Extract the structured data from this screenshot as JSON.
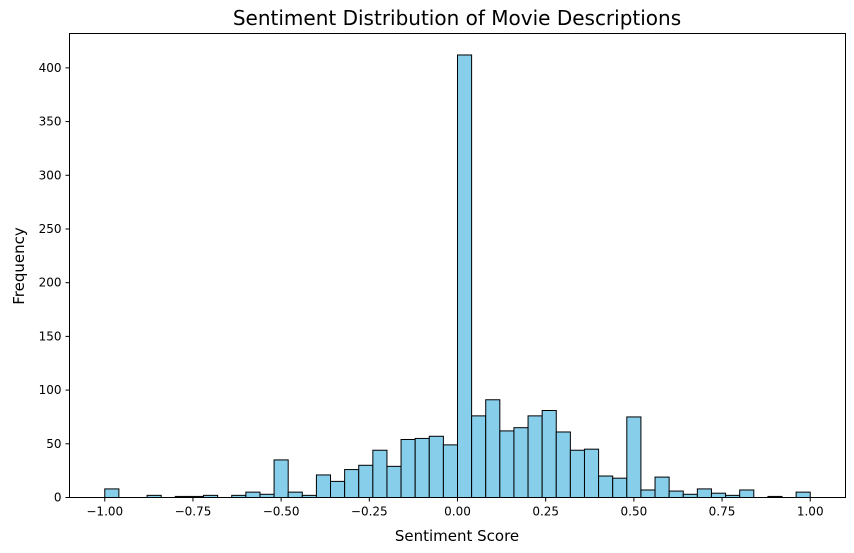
{
  "chart_data": {
    "type": "bar",
    "title": "Sentiment Distribution of Movie Descriptions",
    "xlabel": "Sentiment Score",
    "ylabel": "Frequency",
    "xlim": [
      -1.1,
      1.1
    ],
    "ylim": [
      0,
      432
    ],
    "bin_edges_range": [
      -1.0,
      1.0
    ],
    "bin_count": 50,
    "x_ticks": [
      -1.0,
      -0.75,
      -0.5,
      -0.25,
      0.0,
      0.25,
      0.5,
      0.75,
      1.0
    ],
    "x_tick_labels": [
      "−1.00",
      "−0.75",
      "−0.50",
      "−0.25",
      "0.00",
      "0.25",
      "0.50",
      "0.75",
      "1.00"
    ],
    "y_ticks": [
      0,
      50,
      100,
      150,
      200,
      250,
      300,
      350,
      400
    ],
    "y_tick_labels": [
      "0",
      "50",
      "100",
      "150",
      "200",
      "250",
      "300",
      "350",
      "400"
    ],
    "values": [
      8,
      0,
      0,
      2,
      0,
      1,
      1,
      2,
      0,
      2,
      5,
      3,
      35,
      5,
      2,
      21,
      15,
      26,
      30,
      44,
      29,
      54,
      55,
      57,
      49,
      412,
      76,
      91,
      62,
      65,
      76,
      81,
      61,
      44,
      45,
      20,
      18,
      75,
      7,
      19,
      6,
      3,
      8,
      4,
      2,
      7,
      0,
      1,
      0,
      5
    ],
    "grid": false,
    "bar_color": "#87ceeb",
    "edge_color": "#000000"
  }
}
